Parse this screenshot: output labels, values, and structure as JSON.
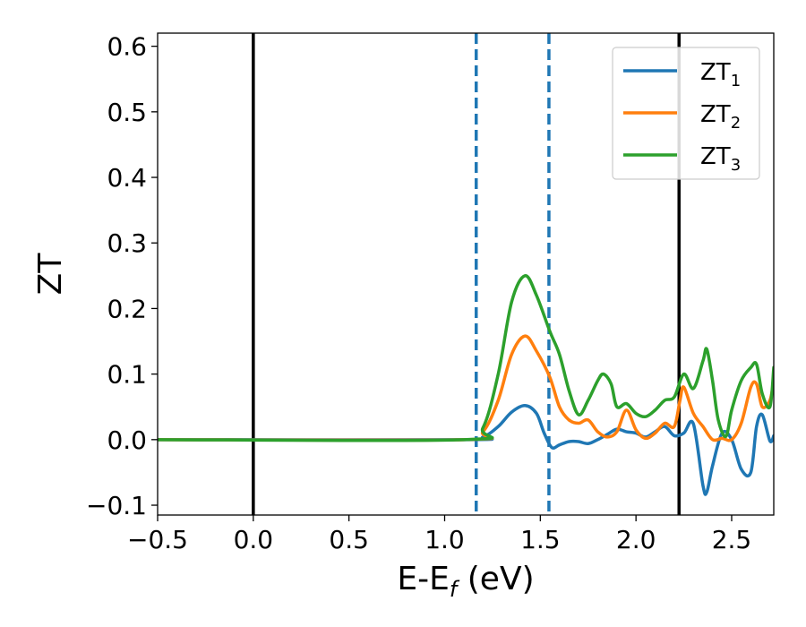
{
  "chart_data": {
    "type": "line",
    "title": "",
    "xlabel": "E-E",
    "xlabel_sub": "f",
    "xlabel_unit": " (eV)",
    "ylabel": "ZT",
    "xlim": [
      -0.5,
      2.72
    ],
    "ylim": [
      -0.115,
      0.62
    ],
    "xticks": [
      -0.5,
      0.0,
      0.5,
      1.0,
      1.5,
      2.0,
      2.5
    ],
    "xtick_labels": [
      "−0.5",
      "0.0",
      "0.5",
      "1.0",
      "1.5",
      "2.0",
      "2.5"
    ],
    "yticks": [
      -0.1,
      0.0,
      0.1,
      0.2,
      0.3,
      0.4,
      0.5,
      0.6
    ],
    "ytick_labels": [
      "−0.1",
      "0.0",
      "0.1",
      "0.2",
      "0.3",
      "0.4",
      "0.5",
      "0.6"
    ],
    "grid": false,
    "legend_position": "top-right",
    "vertical_lines": [
      {
        "x": 0.0,
        "style": "solid",
        "color": "#000000"
      },
      {
        "x": 1.165,
        "style": "dashed",
        "color": "#1f77b4"
      },
      {
        "x": 1.545,
        "style": "dashed",
        "color": "#1f77b4"
      },
      {
        "x": 2.225,
        "style": "solid",
        "color": "#000000"
      }
    ],
    "series": [
      {
        "name": "ZT",
        "name_sub": "1",
        "color": "#1f77b4",
        "x": [
          -0.5,
          1.1,
          1.2,
          1.28,
          1.35,
          1.42,
          1.48,
          1.52,
          1.56,
          1.6,
          1.65,
          1.7,
          1.75,
          1.8,
          1.85,
          1.9,
          1.95,
          2.0,
          2.05,
          2.1,
          2.15,
          2.2,
          2.25,
          2.3,
          2.35,
          2.37,
          2.4,
          2.45,
          2.5,
          2.55,
          2.6,
          2.63,
          2.66,
          2.7,
          2.72
        ],
        "values": [
          0.0,
          0.0,
          0.004,
          0.02,
          0.042,
          0.052,
          0.04,
          0.01,
          -0.012,
          -0.008,
          -0.003,
          -0.003,
          -0.006,
          0.0,
          0.008,
          0.016,
          0.012,
          0.01,
          0.004,
          0.012,
          0.02,
          0.006,
          0.01,
          0.024,
          -0.07,
          -0.08,
          -0.04,
          0.01,
          0.0,
          -0.045,
          -0.05,
          0.02,
          0.038,
          -0.002,
          0.006
        ]
      },
      {
        "name": "ZT",
        "name_sub": "2",
        "color": "#ff7f0e",
        "x": [
          -0.5,
          1.1,
          1.2,
          1.28,
          1.35,
          1.42,
          1.48,
          1.55,
          1.6,
          1.65,
          1.7,
          1.75,
          1.8,
          1.85,
          1.9,
          1.95,
          2.0,
          2.05,
          2.1,
          2.15,
          2.2,
          2.23,
          2.25,
          2.3,
          2.35,
          2.4,
          2.45,
          2.5,
          2.55,
          2.6,
          2.63,
          2.66,
          2.7,
          2.72
        ],
        "values": [
          0.0,
          0.0,
          0.012,
          0.06,
          0.13,
          0.158,
          0.135,
          0.095,
          0.05,
          0.03,
          0.025,
          0.03,
          0.012,
          0.004,
          0.012,
          0.045,
          0.015,
          0.002,
          0.01,
          0.025,
          0.02,
          0.06,
          0.08,
          0.04,
          0.02,
          0.0,
          0.002,
          0.0,
          0.025,
          0.08,
          0.085,
          0.05,
          0.06,
          0.09
        ]
      },
      {
        "name": "ZT",
        "name_sub": "3",
        "color": "#2ca02c",
        "x": [
          -0.5,
          1.1,
          1.2,
          1.28,
          1.35,
          1.42,
          1.48,
          1.55,
          1.6,
          1.65,
          1.7,
          1.75,
          1.8,
          1.83,
          1.87,
          1.9,
          1.95,
          2.0,
          2.05,
          2.1,
          2.15,
          2.2,
          2.25,
          2.3,
          2.35,
          2.37,
          2.4,
          2.43,
          2.47,
          2.5,
          2.55,
          2.6,
          2.63,
          2.66,
          2.7,
          2.72
        ],
        "values": [
          0.0,
          0.0,
          0.018,
          0.1,
          0.21,
          0.25,
          0.22,
          0.165,
          0.13,
          0.075,
          0.038,
          0.06,
          0.09,
          0.1,
          0.085,
          0.05,
          0.055,
          0.04,
          0.035,
          0.045,
          0.06,
          0.065,
          0.1,
          0.078,
          0.12,
          0.138,
          0.09,
          0.03,
          0.005,
          0.045,
          0.09,
          0.11,
          0.115,
          0.07,
          0.05,
          0.11
        ]
      }
    ]
  }
}
